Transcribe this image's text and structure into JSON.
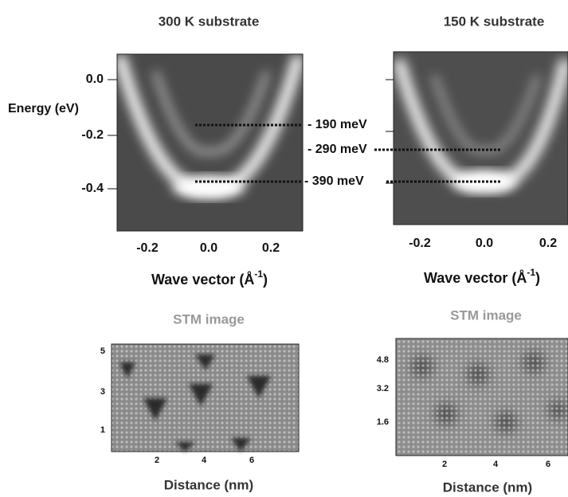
{
  "panels": [
    {
      "title": "300 K substrate",
      "y_label": "Energy (eV)",
      "yticks": [
        "0.0",
        "-0.2",
        "-0.4"
      ],
      "xticks": [
        "-0.2",
        "0.0",
        "0.2"
      ],
      "x_label": [
        "Wave vector (Å",
        "-1",
        ")"
      ]
    },
    {
      "title": "150 K substrate",
      "xticks": [
        "-0.2",
        "0.0",
        "0.2"
      ],
      "x_label": [
        "Wave vector (Å",
        "-1",
        ")"
      ]
    }
  ],
  "annotations": [
    "- 190 meV",
    "- 290 meV",
    "- 390 meV"
  ],
  "stm": [
    {
      "title": "STM image",
      "yticks": [
        "5",
        "3",
        "1"
      ],
      "xticks": [
        "2",
        "4",
        "6"
      ],
      "x_label": "Distance (nm)"
    },
    {
      "title": "STM image",
      "yticks": [
        "4.8",
        "3.2",
        "1.6"
      ],
      "xticks": [
        "2",
        "4",
        "6"
      ],
      "x_label": "Distance (nm)"
    }
  ]
}
